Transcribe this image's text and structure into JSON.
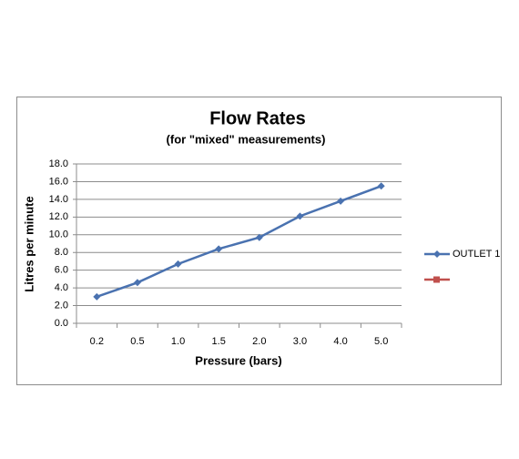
{
  "chart_data": {
    "type": "line",
    "title": "Flow Rates",
    "subtitle": "(for \"mixed\"  measurements)",
    "x_label": "Pressure (bars)",
    "y_label": "Litres per minute",
    "categories": [
      "0.2",
      "0.5",
      "1.0",
      "1.5",
      "2.0",
      "3.0",
      "4.0",
      "5.0"
    ],
    "series": [
      {
        "name": "OUTLET 1",
        "color": "#4a72b0",
        "values": [
          3.0,
          4.6,
          6.7,
          8.4,
          9.7,
          12.1,
          13.8,
          15.5
        ]
      },
      {
        "name": null,
        "color": "#c0504d",
        "values": [
          null,
          null,
          null,
          null,
          null,
          null,
          null,
          null
        ]
      }
    ],
    "ylim": [
      0,
      18
    ],
    "yticks": [
      {
        "value": 0,
        "label": "0.0"
      },
      {
        "value": 2,
        "label": "2.0"
      },
      {
        "value": 4,
        "label": "4.0"
      },
      {
        "value": 6,
        "label": "6.0"
      },
      {
        "value": 8,
        "label": "8.0"
      },
      {
        "value": 10,
        "label": "10.0"
      },
      {
        "value": 12,
        "label": "12.0"
      },
      {
        "value": 14,
        "label": "14.0"
      },
      {
        "value": 16,
        "label": "16.0"
      },
      {
        "value": 18,
        "label": "18.0"
      }
    ],
    "grid": true,
    "legend": "right"
  }
}
